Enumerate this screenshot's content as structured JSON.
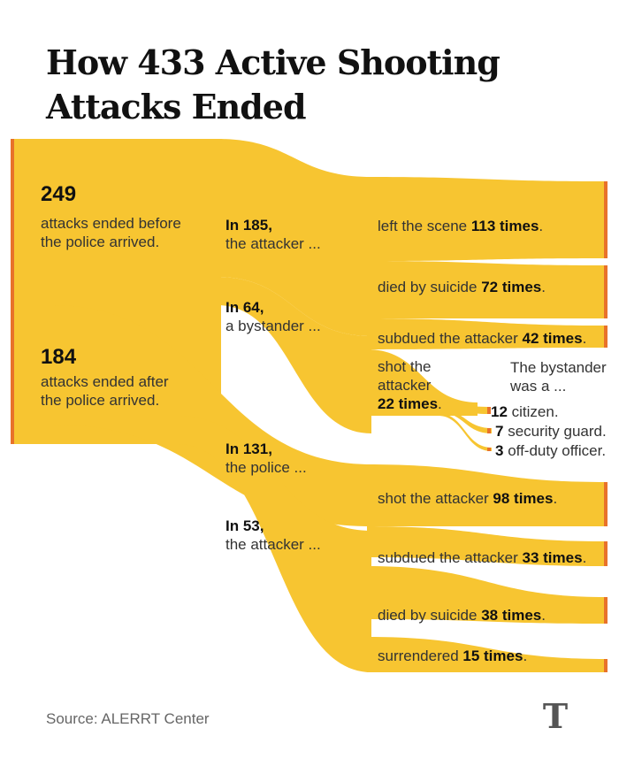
{
  "title": "How 433 Active Shooting Attacks Ended",
  "colors": {
    "flow": "#f7c531",
    "edge": "#e8722a"
  },
  "before": {
    "count": "249",
    "text": "attacks ended before the police arrived."
  },
  "after": {
    "count": "184",
    "text": "attacks ended after the police arrived."
  },
  "mid": {
    "attacker_before": {
      "count": "In 185,",
      "text": "the attacker ..."
    },
    "bystander": {
      "count": "In 64,",
      "text": "a bystander ..."
    },
    "police": {
      "count": "In 131,",
      "text": "the police ..."
    },
    "attacker_after": {
      "count": "In 53,",
      "text": "the attacker ..."
    }
  },
  "outcomes": {
    "left_scene": {
      "pre": "left the scene ",
      "count": "113 times",
      "post": "."
    },
    "suicide_before": {
      "pre": "died by suicide ",
      "count": "72 times",
      "post": "."
    },
    "bystander_subdued": {
      "pre": "subdued the attacker ",
      "count": "42 times",
      "post": "."
    },
    "bystander_shot": {
      "line1": "shot the",
      "line2": "attacker",
      "count": "22 times",
      "post": "."
    },
    "police_shot": {
      "pre": "shot the attacker ",
      "count": "98 times",
      "post": "."
    },
    "police_subdued": {
      "pre": "subdued the attacker ",
      "count": "33 times",
      "post": "."
    },
    "suicide_after": {
      "pre": "died by suicide ",
      "count": "38 times",
      "post": "."
    },
    "surrendered": {
      "pre": "surrendered ",
      "count": "15 times",
      "post": "."
    }
  },
  "bystander_type": {
    "heading1": "The bystander",
    "heading2": "was a ...",
    "items": [
      {
        "count": "12",
        "label": " citizen."
      },
      {
        "count": "7",
        "label": " security guard."
      },
      {
        "count": "3",
        "label": " off-duty officer."
      }
    ]
  },
  "source": "Source: ALERRT Center",
  "logo": "T"
}
